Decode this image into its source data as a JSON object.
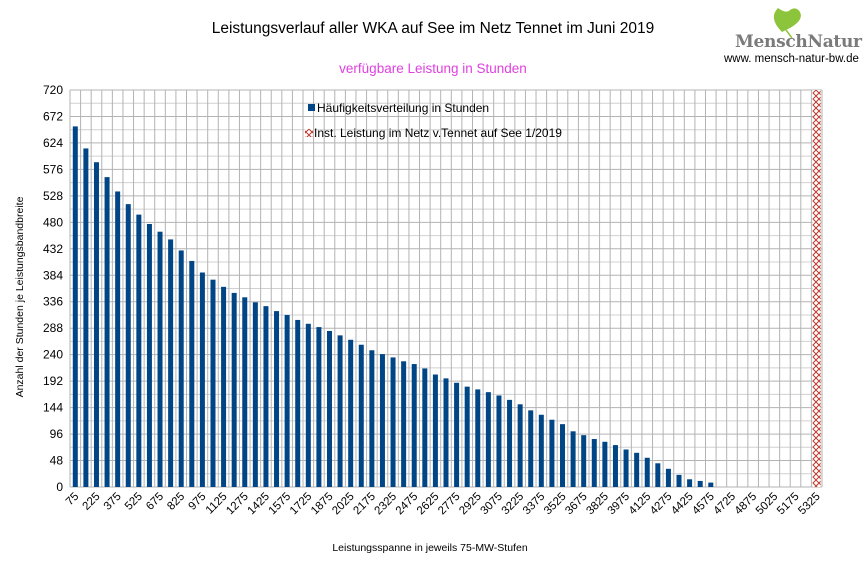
{
  "header": {
    "title": "Leistungsverlauf aller WKA auf See im  Netz  Tennet im Juni 2019",
    "subtitle": "verfügbare Leistung in Stunden"
  },
  "logo": {
    "brand": "MenschNatur",
    "url": "www. mensch-natur-bw.de",
    "icon": "ginkgo-leaf-icon",
    "colors": {
      "leaf": "#8cc43c",
      "text": "#7a7a7a"
    }
  },
  "chart_data": {
    "type": "bar",
    "title": "Leistungsverlauf aller WKA auf See im  Netz  Tennet im Juni 2019",
    "subtitle": "verfügbare Leistung in Stunden",
    "xlabel": "Leistungsspanne in jeweils 75-MW-Stufen",
    "ylabel": "Anzahl der Stunden je Leistungsbandbreite",
    "ylim": [
      0,
      720
    ],
    "yticks": [
      0,
      48,
      96,
      144,
      192,
      240,
      288,
      336,
      384,
      432,
      480,
      528,
      576,
      624,
      672,
      720
    ],
    "x_start": 75,
    "x_step": 75,
    "x_count": 71,
    "xtick_every": 2,
    "grid": true,
    "legend_position": "top-center",
    "series": [
      {
        "name": "Häufigkeitsverteilung in Stunden",
        "color": "#004586",
        "style": "solid",
        "values": [
          654,
          614,
          589,
          562,
          536,
          513,
          494,
          477,
          463,
          449,
          429,
          410,
          389,
          376,
          363,
          352,
          344,
          335,
          328,
          319,
          312,
          303,
          296,
          290,
          283,
          275,
          267,
          258,
          248,
          241,
          235,
          228,
          223,
          215,
          204,
          197,
          189,
          182,
          177,
          172,
          166,
          158,
          150,
          139,
          131,
          122,
          114,
          101,
          94,
          87,
          82,
          76,
          68,
          62,
          53,
          43,
          33,
          22,
          14,
          11,
          8
        ]
      },
      {
        "name": "Inst. Leistung im Netz v.Tennet auf See 1/2019",
        "color": "#c0392b",
        "style": "hatched",
        "category": 5325,
        "value": 720
      }
    ]
  }
}
